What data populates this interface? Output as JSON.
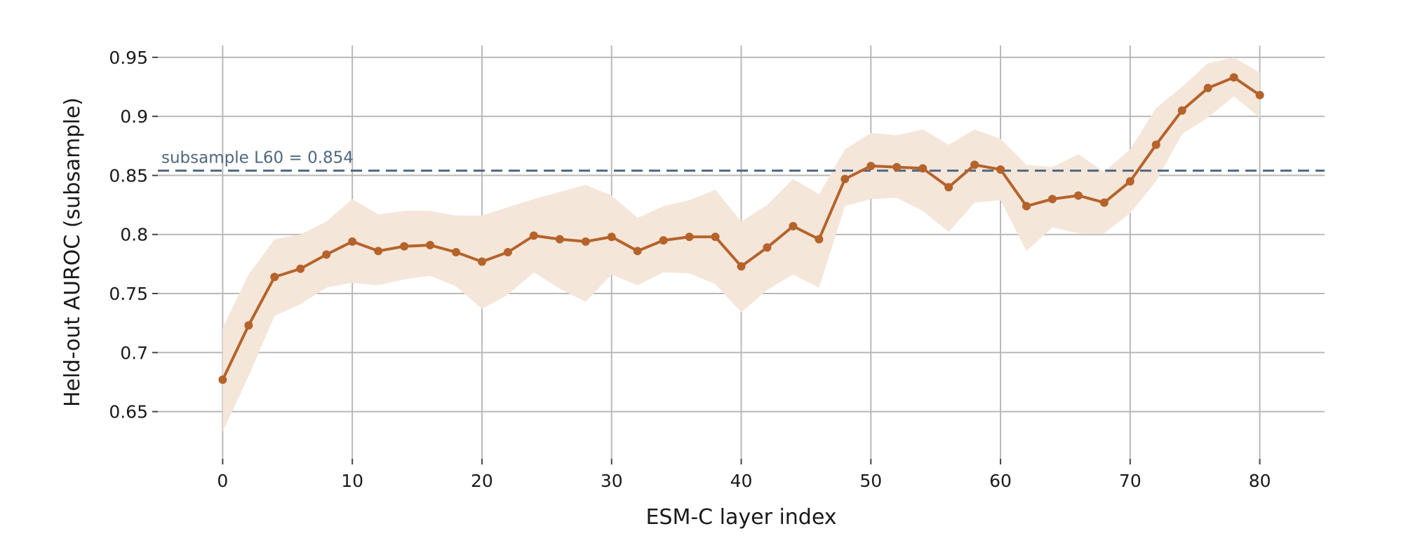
{
  "chart_data": {
    "type": "line",
    "title": "",
    "xlabel": "ESM-C layer index",
    "ylabel": "Held-out AUROC (subsample)",
    "xlim": [
      -5,
      85
    ],
    "ylim": [
      0.61,
      0.96
    ],
    "x_ticks": [
      0,
      10,
      20,
      30,
      40,
      50,
      60,
      70,
      80
    ],
    "x_tick_labels": [
      "0",
      "10",
      "20",
      "30",
      "40",
      "50",
      "60",
      "70",
      "80"
    ],
    "y_ticks": [
      0.65,
      0.7,
      0.75,
      0.8,
      0.85,
      0.9,
      0.95
    ],
    "y_tick_labels": [
      "0.65",
      "0.7",
      "0.75",
      "0.8",
      "0.85",
      "0.9",
      "0.95"
    ],
    "grid": true,
    "legend": "none",
    "colors": {
      "line": "#b5632a",
      "band": "#f5e6da",
      "reference": "#4f6780",
      "grid": "#b9b9b9"
    },
    "series": [
      {
        "x": [
          0,
          2,
          4,
          6,
          8,
          10,
          12,
          14,
          16,
          18,
          20,
          22,
          24,
          26,
          28,
          30,
          32,
          34,
          36,
          38,
          40,
          42,
          44,
          46,
          48,
          50,
          52,
          54,
          56,
          58,
          60,
          62,
          64,
          66,
          68,
          70,
          72,
          74,
          76,
          78,
          80
        ],
        "y": [
          0.677,
          0.723,
          0.764,
          0.771,
          0.783,
          0.794,
          0.786,
          0.79,
          0.791,
          0.785,
          0.777,
          0.785,
          0.799,
          0.796,
          0.794,
          0.798,
          0.786,
          0.795,
          0.798,
          0.798,
          0.773,
          0.789,
          0.807,
          0.796,
          0.847,
          0.858,
          0.857,
          0.856,
          0.84,
          0.859,
          0.855,
          0.824,
          0.83,
          0.833,
          0.827,
          0.845,
          0.876,
          0.905,
          0.924,
          0.933,
          0.918
        ],
        "lower": [
          0.633,
          0.68,
          0.731,
          0.741,
          0.755,
          0.759,
          0.757,
          0.762,
          0.765,
          0.756,
          0.737,
          0.749,
          0.768,
          0.754,
          0.743,
          0.766,
          0.757,
          0.768,
          0.767,
          0.758,
          0.734,
          0.753,
          0.766,
          0.755,
          0.824,
          0.83,
          0.831,
          0.82,
          0.802,
          0.827,
          0.829,
          0.786,
          0.806,
          0.801,
          0.801,
          0.818,
          0.845,
          0.885,
          0.899,
          0.917,
          0.899
        ],
        "upper": [
          0.721,
          0.766,
          0.796,
          0.8,
          0.811,
          0.83,
          0.817,
          0.82,
          0.82,
          0.816,
          0.816,
          0.823,
          0.83,
          0.836,
          0.842,
          0.833,
          0.814,
          0.824,
          0.829,
          0.838,
          0.811,
          0.825,
          0.847,
          0.834,
          0.872,
          0.886,
          0.884,
          0.889,
          0.876,
          0.889,
          0.881,
          0.859,
          0.857,
          0.868,
          0.853,
          0.872,
          0.907,
          0.925,
          0.945,
          0.95,
          0.937
        ]
      }
    ],
    "reference_line": {
      "y": 0.854,
      "label": "subsample L60 = 0.854",
      "style": "dashed"
    }
  }
}
